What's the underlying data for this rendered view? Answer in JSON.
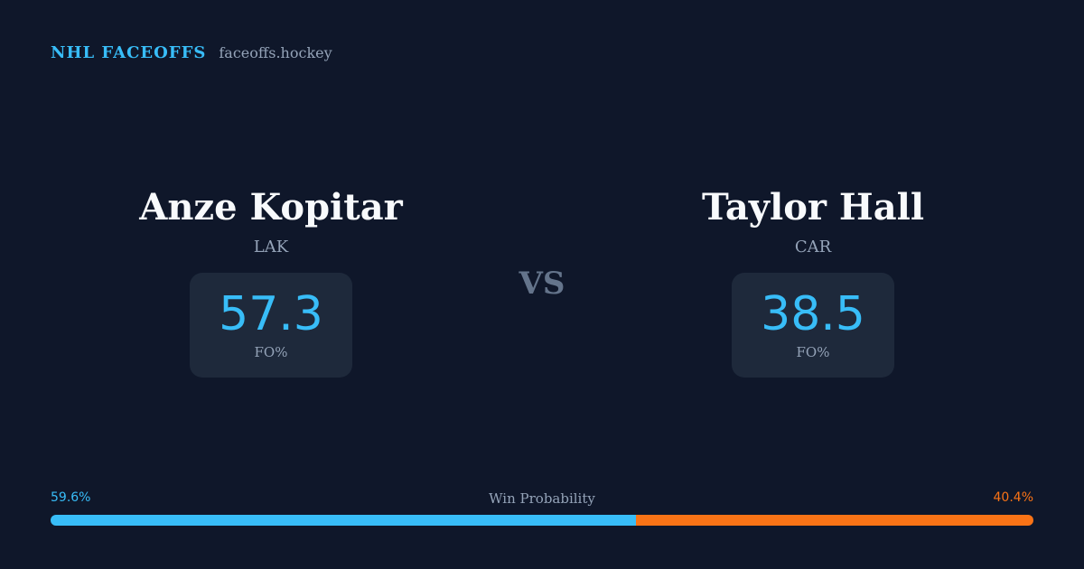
{
  "header": {
    "brand": "NHL FACEOFFS",
    "url": "faceoffs.hockey"
  },
  "players": {
    "left": {
      "name": "Anze Kopitar",
      "team": "LAK",
      "stat_value": "57.3",
      "stat_label": "FO%"
    },
    "right": {
      "name": "Taylor Hall",
      "team": "CAR",
      "stat_value": "38.5",
      "stat_label": "FO%"
    }
  },
  "versus": "VS",
  "win_probability": {
    "title": "Win Probability",
    "left_label": "59.6%",
    "right_label": "40.4%",
    "left_value": 59.6,
    "right_value": 40.4
  },
  "colors": {
    "background": "#0f172a",
    "accent_left": "#38bdf8",
    "accent_right": "#f97316",
    "card": "#1e293b"
  }
}
